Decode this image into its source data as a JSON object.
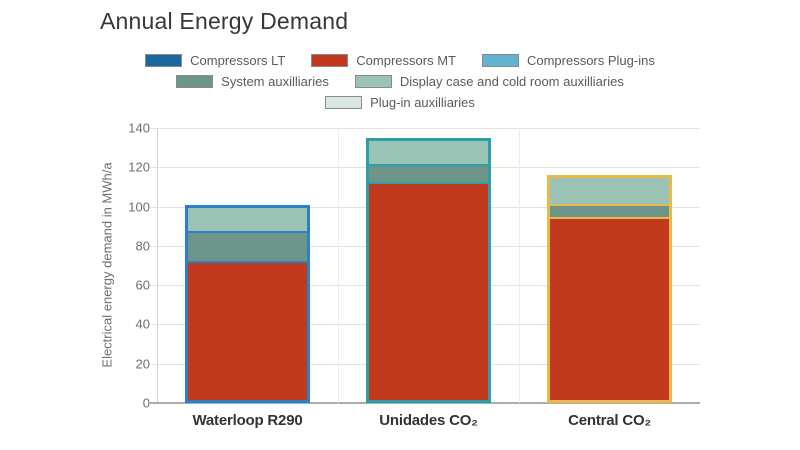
{
  "title": "Annual Energy Demand",
  "chart_data": {
    "type": "bar",
    "subtype": "stacked-bar-with-group-outline",
    "title": "Annual Energy Demand",
    "xlabel": "",
    "ylabel": "Electrical energy demand in MWh/a",
    "ylim": [
      0,
      140
    ],
    "ytick_labels": [
      "0",
      "20",
      "40",
      "60",
      "80",
      "100",
      "120",
      "140"
    ],
    "grid": "horizontal",
    "legend_position": "top-center",
    "categories": [
      "Waterloop R290",
      "Unidades CO₂",
      "Central CO₂"
    ],
    "bar_outline_colors": [
      "#2c80c9",
      "#2d9fa6",
      "#e9b94b"
    ],
    "series": [
      {
        "name": "Compressors LT",
        "color": "#1a699e",
        "values": [
          0,
          0,
          0
        ]
      },
      {
        "name": "Compressors MT",
        "color": "#c23a1e",
        "values": [
          71,
          111,
          93
        ]
      },
      {
        "name": "Compressors Plug-ins",
        "color": "#62b2d2",
        "values": [
          0,
          0,
          0
        ]
      },
      {
        "name": "System auxilliaries",
        "color": "#6e958a",
        "values": [
          15,
          9,
          7
        ]
      },
      {
        "name": "Display case and cold room auxilliaries",
        "color": "#9cc4b6",
        "values": [
          12,
          12,
          13
        ]
      },
      {
        "name": "Plug-in auxilliaries",
        "color": "#d9e9e2",
        "values": [
          0,
          0,
          0
        ]
      }
    ],
    "stack_order_bottom_to_top": [
      "Compressors MT",
      "System auxilliaries",
      "Display case and cold room auxilliaries"
    ],
    "totals": [
      98,
      132,
      113
    ],
    "legend_rows": [
      [
        0,
        1,
        2
      ],
      [
        3,
        4
      ],
      [
        5
      ]
    ]
  },
  "colors": {
    "background": "#ffffff",
    "title_text": "#373737",
    "legend_text": "#5a5a5a",
    "axis_text": "#6f6f6f",
    "x_label_text": "#333333",
    "gridline": "#e2e2e2",
    "axis_line": "#ababab"
  }
}
